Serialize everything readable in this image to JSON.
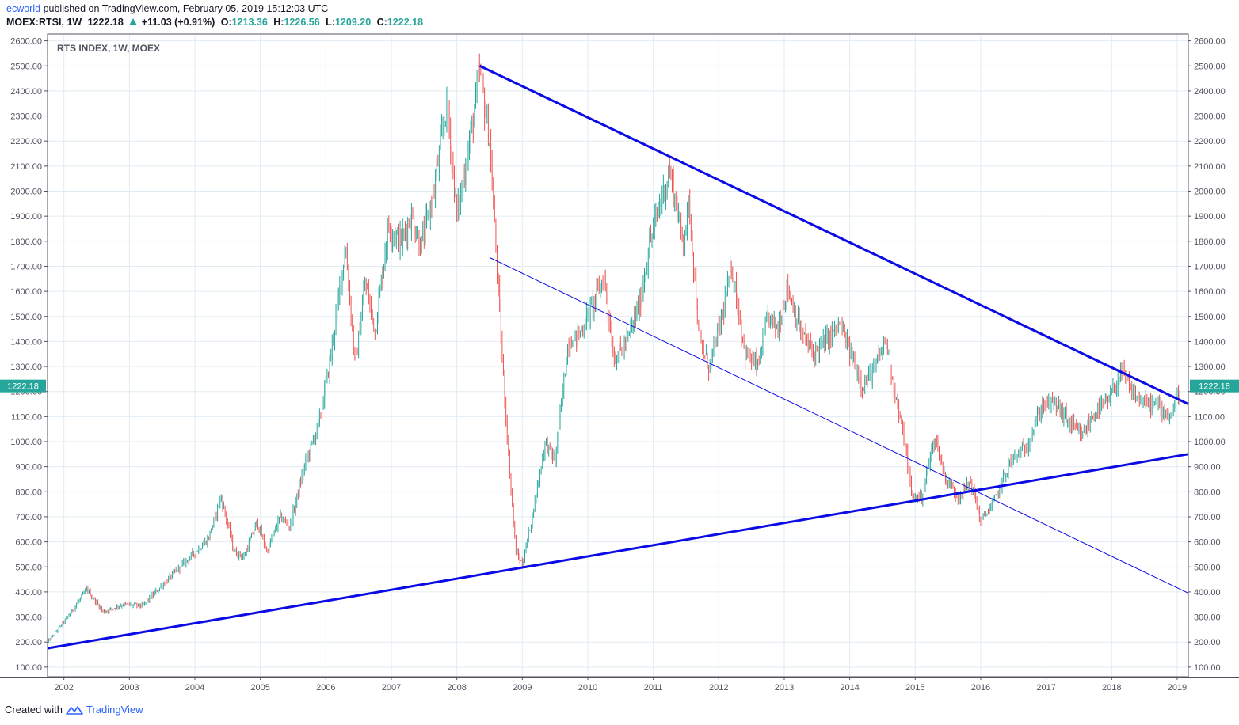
{
  "header": {
    "author": "ecworld",
    "published_text": "published on TradingView.com, February 05, 2019 15:12:03 UTC",
    "symbol": "MOEX:RTSI, 1W",
    "last": "1222.18",
    "change": "+11.03 (+0.91%)",
    "o_label": "O:",
    "o": "1213.36",
    "h_label": "H:",
    "h": "1226.56",
    "l_label": "L:",
    "l": "1209.20",
    "c_label": "C:",
    "c": "1222.18"
  },
  "footer": {
    "created_with": "Created with",
    "brand": "TradingView"
  },
  "colors": {
    "up": "#26a69a",
    "down": "#ef5350",
    "trendline": "#0b0be6",
    "grid": "#e1ecf2",
    "price_tag": "#26a69a"
  },
  "chart_data": {
    "type": "candlestick",
    "title": "RTS INDEX, 1W, MOEX",
    "timeframe": "1W",
    "ylim": [
      100,
      2600
    ],
    "yticks": [
      "2600.00",
      "2500.00",
      "2400.00",
      "2300.00",
      "2200.00",
      "2100.00",
      "2000.00",
      "1900.00",
      "1800.00",
      "1700.00",
      "1600.00",
      "1500.00",
      "1400.00",
      "1300.00",
      "1200.00",
      "1100.00",
      "1000.00",
      "900.00",
      "800.00",
      "700.00",
      "600.00",
      "500.00",
      "400.00",
      "300.00",
      "200.00",
      "100.00"
    ],
    "xticks": [
      "2002",
      "2003",
      "2004",
      "2005",
      "2006",
      "2007",
      "2008",
      "2009",
      "2010",
      "2011",
      "2012",
      "2013",
      "2014",
      "2015",
      "2016",
      "2017",
      "2018",
      "2019"
    ],
    "last_price_label": "1222.18",
    "last_price": 1222.18,
    "price_path": [
      [
        2001.75,
        200
      ],
      [
        2002.0,
        280
      ],
      [
        2002.35,
        410
      ],
      [
        2002.6,
        320
      ],
      [
        2002.9,
        350
      ],
      [
        2003.2,
        345
      ],
      [
        2003.55,
        440
      ],
      [
        2003.85,
        520
      ],
      [
        2004.2,
        610
      ],
      [
        2004.4,
        780
      ],
      [
        2004.6,
        560
      ],
      [
        2004.75,
        540
      ],
      [
        2004.95,
        680
      ],
      [
        2005.1,
        560
      ],
      [
        2005.3,
        700
      ],
      [
        2005.45,
        660
      ],
      [
        2005.65,
        880
      ],
      [
        2005.9,
        1080
      ],
      [
        2006.05,
        1300
      ],
      [
        2006.3,
        1780
      ],
      [
        2006.45,
        1300
      ],
      [
        2006.6,
        1640
      ],
      [
        2006.75,
        1440
      ],
      [
        2006.95,
        1860
      ],
      [
        2007.15,
        1800
      ],
      [
        2007.3,
        1900
      ],
      [
        2007.45,
        1780
      ],
      [
        2007.65,
        2000
      ],
      [
        2007.85,
        2360
      ],
      [
        2008.0,
        1900
      ],
      [
        2008.2,
        2200
      ],
      [
        2008.35,
        2480
      ],
      [
        2008.5,
        2200
      ],
      [
        2008.6,
        1750
      ],
      [
        2008.7,
        1300
      ],
      [
        2008.8,
        900
      ],
      [
        2008.9,
        560
      ],
      [
        2009.0,
        510
      ],
      [
        2009.15,
        700
      ],
      [
        2009.35,
        1000
      ],
      [
        2009.5,
        920
      ],
      [
        2009.7,
        1400
      ],
      [
        2009.85,
        1420
      ],
      [
        2010.0,
        1500
      ],
      [
        2010.25,
        1660
      ],
      [
        2010.4,
        1330
      ],
      [
        2010.6,
        1400
      ],
      [
        2010.8,
        1560
      ],
      [
        2010.95,
        1800
      ],
      [
        2011.1,
        1950
      ],
      [
        2011.25,
        2080
      ],
      [
        2011.45,
        1800
      ],
      [
        2011.55,
        1950
      ],
      [
        2011.7,
        1400
      ],
      [
        2011.85,
        1300
      ],
      [
        2012.05,
        1500
      ],
      [
        2012.2,
        1700
      ],
      [
        2012.4,
        1350
      ],
      [
        2012.6,
        1300
      ],
      [
        2012.75,
        1500
      ],
      [
        2012.9,
        1450
      ],
      [
        2013.05,
        1620
      ],
      [
        2013.25,
        1440
      ],
      [
        2013.45,
        1350
      ],
      [
        2013.7,
        1420
      ],
      [
        2013.85,
        1470
      ],
      [
        2014.0,
        1360
      ],
      [
        2014.2,
        1220
      ],
      [
        2014.4,
        1300
      ],
      [
        2014.55,
        1410
      ],
      [
        2014.7,
        1180
      ],
      [
        2014.85,
        980
      ],
      [
        2014.95,
        780
      ],
      [
        2015.1,
        780
      ],
      [
        2015.3,
        1020
      ],
      [
        2015.45,
        860
      ],
      [
        2015.65,
        780
      ],
      [
        2015.85,
        840
      ],
      [
        2016.0,
        680
      ],
      [
        2016.2,
        760
      ],
      [
        2016.45,
        920
      ],
      [
        2016.7,
        980
      ],
      [
        2016.95,
        1150
      ],
      [
        2017.15,
        1150
      ],
      [
        2017.4,
        1060
      ],
      [
        2017.55,
        1020
      ],
      [
        2017.75,
        1120
      ],
      [
        2017.95,
        1160
      ],
      [
        2018.15,
        1280
      ],
      [
        2018.3,
        1200
      ],
      [
        2018.5,
        1150
      ],
      [
        2018.7,
        1150
      ],
      [
        2018.9,
        1100
      ],
      [
        2019.05,
        1222
      ]
    ],
    "trendlines": [
      {
        "name": "upper",
        "from": [
          2008.35,
          2500
        ],
        "to": [
          2019.17,
          1150
        ],
        "weight": "thick"
      },
      {
        "name": "lower",
        "from": [
          2001.75,
          175
        ],
        "to": [
          2019.17,
          950
        ],
        "weight": "thick"
      },
      {
        "name": "channel",
        "from": [
          2008.5,
          1735
        ],
        "to": [
          2019.17,
          395
        ],
        "weight": "thin"
      }
    ]
  }
}
